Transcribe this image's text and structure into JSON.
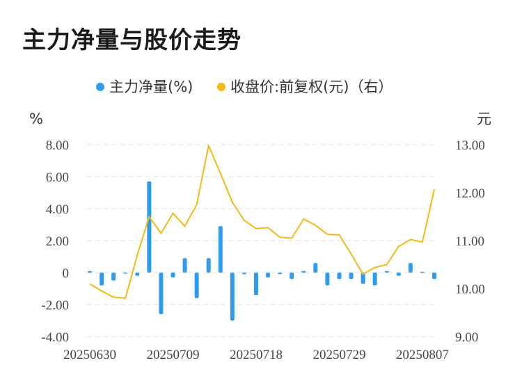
{
  "chart_data": {
    "type": "bar+line",
    "title": "主力净量与股价走势",
    "legend": [
      {
        "name": "主力净量(%)",
        "color": "#2f9bef"
      },
      {
        "name": "收盘价:前复权(元)（右）",
        "color": "#f5b817"
      }
    ],
    "legend_position": "top-center",
    "y_left": {
      "unit": "%",
      "ticks": [
        "8.00",
        "6.00",
        "4.00",
        "2.00",
        "0",
        "-2.00",
        "-4.00"
      ],
      "range": [
        -4,
        8
      ]
    },
    "y_right": {
      "unit": "元",
      "ticks": [
        "13.00",
        "12.00",
        "11.00",
        "10.00",
        "9.00"
      ],
      "range": [
        9,
        13
      ]
    },
    "x_tick_labels": [
      "20250630",
      "20250709",
      "20250718",
      "20250729",
      "20250807"
    ],
    "grid": "horizontal dashed",
    "dates": [
      "20250630",
      "20250701",
      "20250702",
      "20250703",
      "20250704",
      "20250707",
      "20250708",
      "20250709",
      "20250710",
      "20250711",
      "20250714",
      "20250715",
      "20250716",
      "20250717",
      "20250718",
      "20250721",
      "20250722",
      "20250723",
      "20250724",
      "20250725",
      "20250728",
      "20250729",
      "20250730",
      "20250731",
      "20250801",
      "20250804",
      "20250805",
      "20250806",
      "20250807",
      "20250808"
    ],
    "series": [
      {
        "name": "主力净量(%)",
        "type": "bar",
        "axis": "left",
        "values": [
          0.1,
          -0.8,
          -0.5,
          0.0,
          -0.2,
          5.7,
          -2.6,
          -0.3,
          0.9,
          -1.6,
          0.9,
          2.9,
          -3.0,
          -0.1,
          -1.4,
          -0.3,
          -0.1,
          -0.4,
          0.1,
          0.6,
          -0.8,
          -0.4,
          -0.4,
          -0.7,
          -0.8,
          0.1,
          -0.2,
          0.6,
          0.05,
          -0.4
        ]
      },
      {
        "name": "收盘价:前复权(元)",
        "type": "line",
        "axis": "right",
        "values": [
          10.1,
          9.95,
          9.82,
          9.8,
          10.7,
          11.5,
          11.15,
          11.57,
          11.3,
          11.75,
          12.98,
          12.4,
          11.8,
          11.42,
          11.25,
          11.27,
          11.07,
          11.05,
          11.45,
          11.32,
          11.13,
          11.12,
          10.72,
          10.3,
          10.44,
          10.5,
          10.88,
          11.02,
          10.97,
          12.07
        ]
      }
    ]
  }
}
